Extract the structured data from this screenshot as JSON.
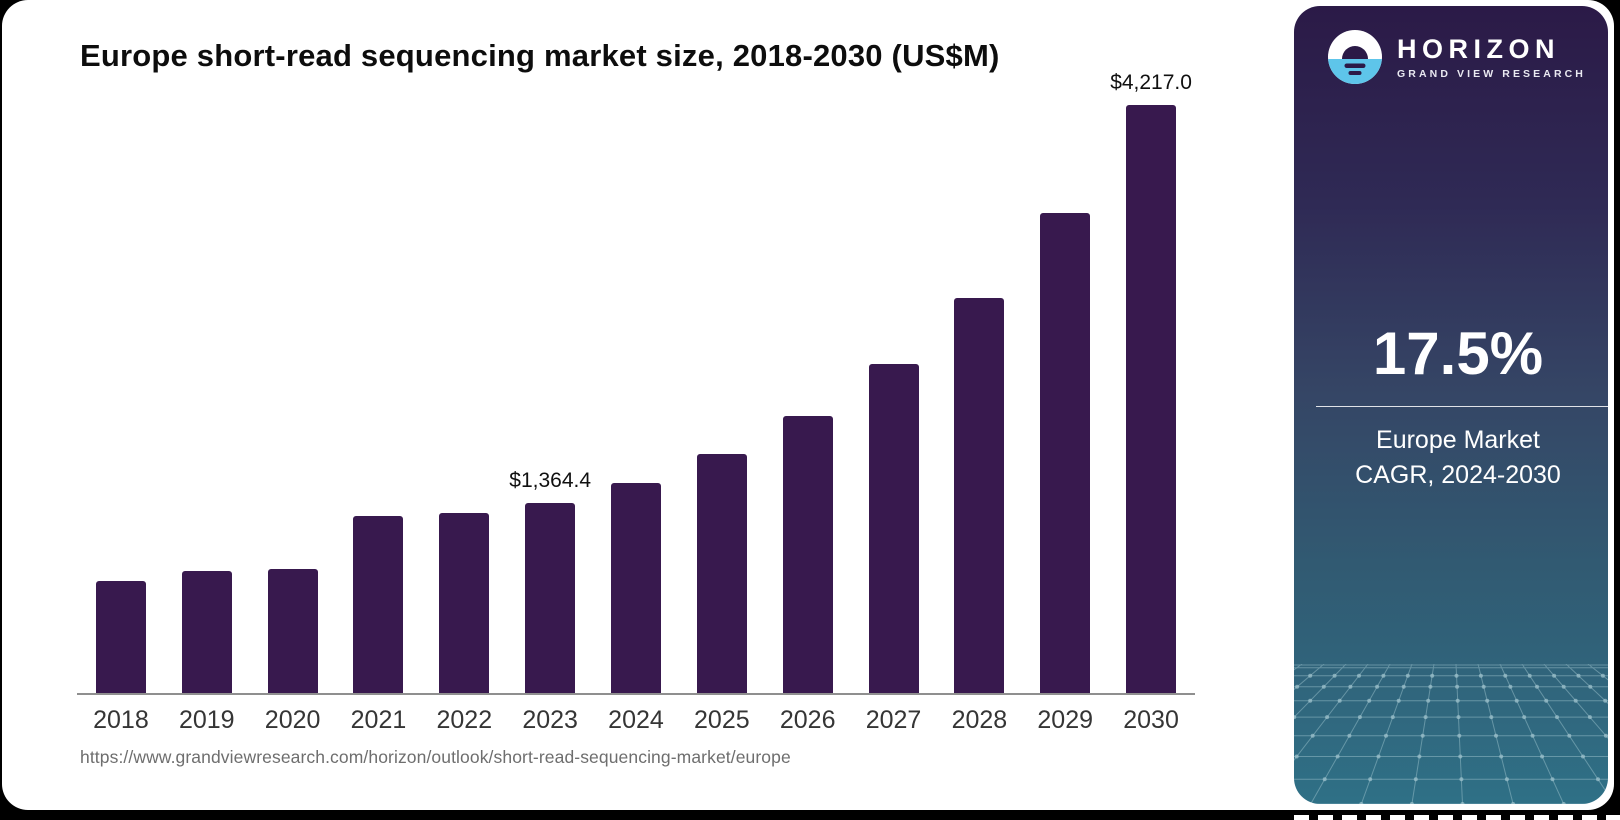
{
  "chart_data": {
    "type": "bar",
    "title": "Europe short-read sequencing market size, 2018-2030 (US$M)",
    "categories": [
      "2018",
      "2019",
      "2020",
      "2021",
      "2022",
      "2023",
      "2024",
      "2025",
      "2026",
      "2027",
      "2028",
      "2029",
      "2030"
    ],
    "values": [
      800,
      878,
      886,
      1266,
      1288,
      1364.4,
      1509,
      1716,
      1988,
      2360,
      2831,
      3439,
      4217.0
    ],
    "labels": {
      "2023": "$1,364.4",
      "2030": "$4,217.0"
    },
    "bar_color": "#38194e",
    "xlabel": "",
    "ylabel": "",
    "ylim": [
      0,
      4400
    ],
    "grid": false,
    "legend": "none"
  },
  "footer": {
    "source_url": "https://www.grandviewresearch.com/horizon/outlook/short-read-sequencing-market/europe"
  },
  "sidebar": {
    "brand": {
      "name": "HORIZON",
      "subtitle": "GRAND VIEW RESEARCH"
    },
    "stat": {
      "value": "17.5%",
      "label_line1": "Europe Market",
      "label_line2": "CAGR, 2024-2030"
    },
    "colors": {
      "top": "#2b1a47",
      "bottom": "#2f7086",
      "logo_blue": "#5ec5ea"
    }
  }
}
